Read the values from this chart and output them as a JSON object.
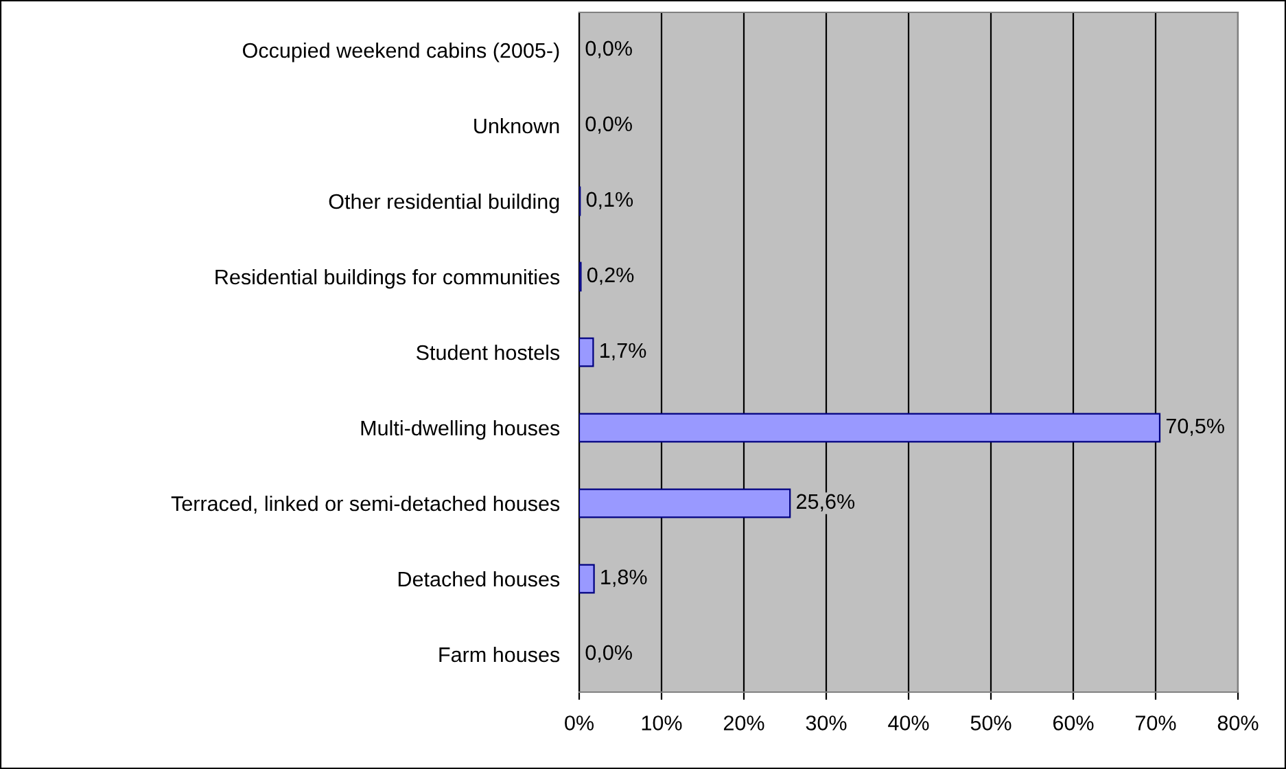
{
  "chart_data": {
    "type": "bar",
    "orientation": "horizontal",
    "categories": [
      "Occupied weekend cabins (2005-)",
      "Unknown",
      "Other residential building",
      "Residential buildings for communities",
      "Student hostels",
      "Multi-dwelling houses",
      "Terraced, linked or semi-detached houses",
      "Detached houses",
      "Farm houses"
    ],
    "values": [
      0.0,
      0.0,
      0.1,
      0.2,
      1.7,
      70.5,
      25.6,
      1.8,
      0.0
    ],
    "value_labels": [
      "0,0%",
      "0,0%",
      "0,1%",
      "0,2%",
      "1,7%",
      "70,5%",
      "25,6%",
      "1,8%",
      "0,0%"
    ],
    "color": "#9999ff",
    "xlim": [
      0,
      80
    ],
    "xticks": [
      {
        "value": 0,
        "label": "0%"
      },
      {
        "value": 10,
        "label": "10%"
      },
      {
        "value": 20,
        "label": "20%"
      },
      {
        "value": 30,
        "label": "30%"
      },
      {
        "value": 40,
        "label": "40%"
      },
      {
        "value": 50,
        "label": "50%"
      },
      {
        "value": 60,
        "label": "60%"
      },
      {
        "value": 70,
        "label": "70%"
      },
      {
        "value": 80,
        "label": "80%"
      }
    ],
    "grid": "x",
    "legend": false
  }
}
